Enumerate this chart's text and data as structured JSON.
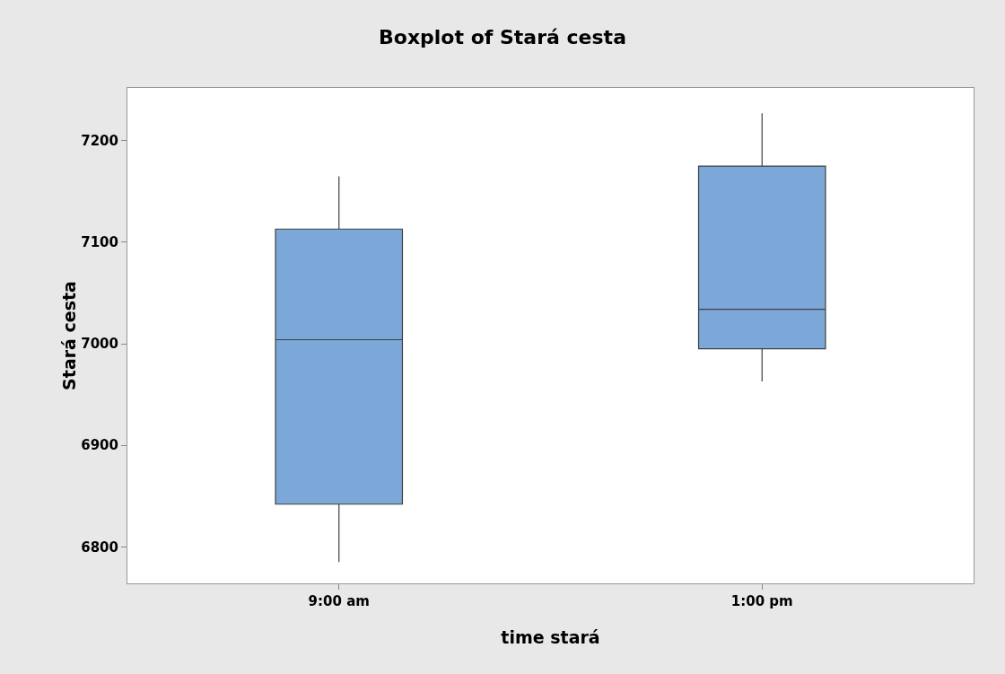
{
  "chart_data": {
    "type": "box",
    "title": "Boxplot of Stará cesta",
    "xlabel": "time stará",
    "ylabel": "Stará cesta",
    "categories": [
      "9:00 am",
      "1:00 pm"
    ],
    "color": "#7ba7d9",
    "boxes": [
      {
        "low": 6785,
        "q1": 6842,
        "median": 7004,
        "q3": 7113,
        "high": 7165
      },
      {
        "low": 6963,
        "q1": 6995,
        "median": 7034,
        "q3": 7175,
        "high": 7227
      }
    ],
    "ylim": [
      6764,
      7252
    ],
    "yticks": [
      6800,
      6900,
      7000,
      7100,
      7200
    ],
    "grid": false
  }
}
